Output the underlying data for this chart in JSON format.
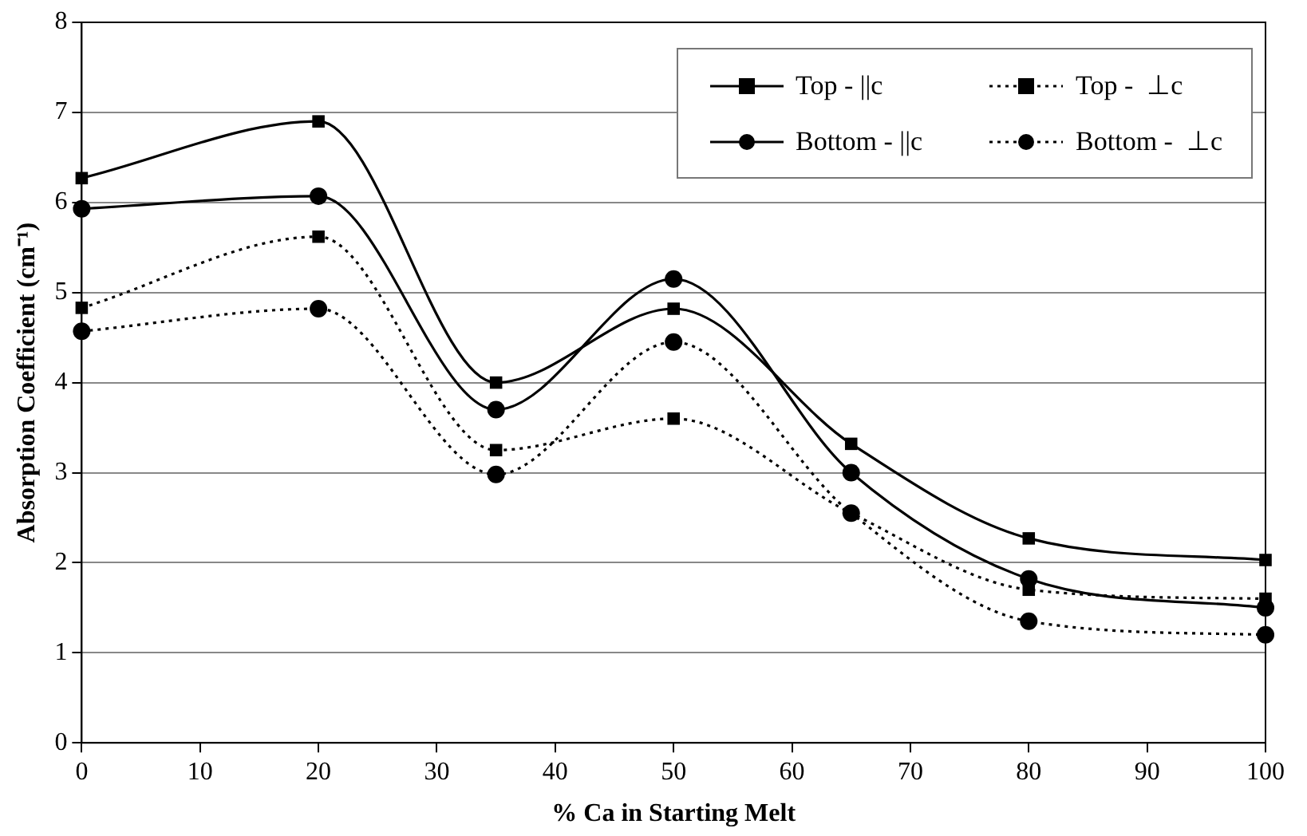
{
  "chart_data": {
    "type": "line",
    "xlabel": "% Ca in Starting Melt",
    "ylabel": "Absorption Coefficient (cm⁻¹)",
    "x": [
      0,
      20,
      35,
      50,
      65,
      80,
      100
    ],
    "xlim": [
      0,
      100
    ],
    "xticks": [
      0,
      10,
      20,
      30,
      40,
      50,
      60,
      70,
      80,
      90,
      100
    ],
    "ylim": [
      0,
      8
    ],
    "yticks": [
      0,
      1,
      2,
      3,
      4,
      5,
      6,
      7,
      8
    ],
    "grid": "y",
    "legend": "top right",
    "series": [
      {
        "name": "Top - ||c",
        "color": "#000000",
        "marker": "square",
        "line_style": "solid",
        "values": [
          6.27,
          6.9,
          4.0,
          4.82,
          3.32,
          2.27,
          2.03
        ]
      },
      {
        "name": "Top -  ⊥c",
        "color": "#000000",
        "marker": "square",
        "line_style": "dotted",
        "values": [
          4.83,
          5.62,
          3.25,
          3.6,
          2.55,
          1.7,
          1.6
        ]
      },
      {
        "name": "Bottom - ||c",
        "color": "#000000",
        "marker": "circle",
        "line_style": "solid",
        "values": [
          5.93,
          6.07,
          3.7,
          5.15,
          3.0,
          1.82,
          1.5
        ]
      },
      {
        "name": "Bottom -  ⊥c",
        "color": "#000000",
        "marker": "circle",
        "line_style": "dotted",
        "values": [
          4.57,
          4.82,
          2.98,
          4.45,
          2.55,
          1.35,
          1.2
        ]
      }
    ]
  }
}
